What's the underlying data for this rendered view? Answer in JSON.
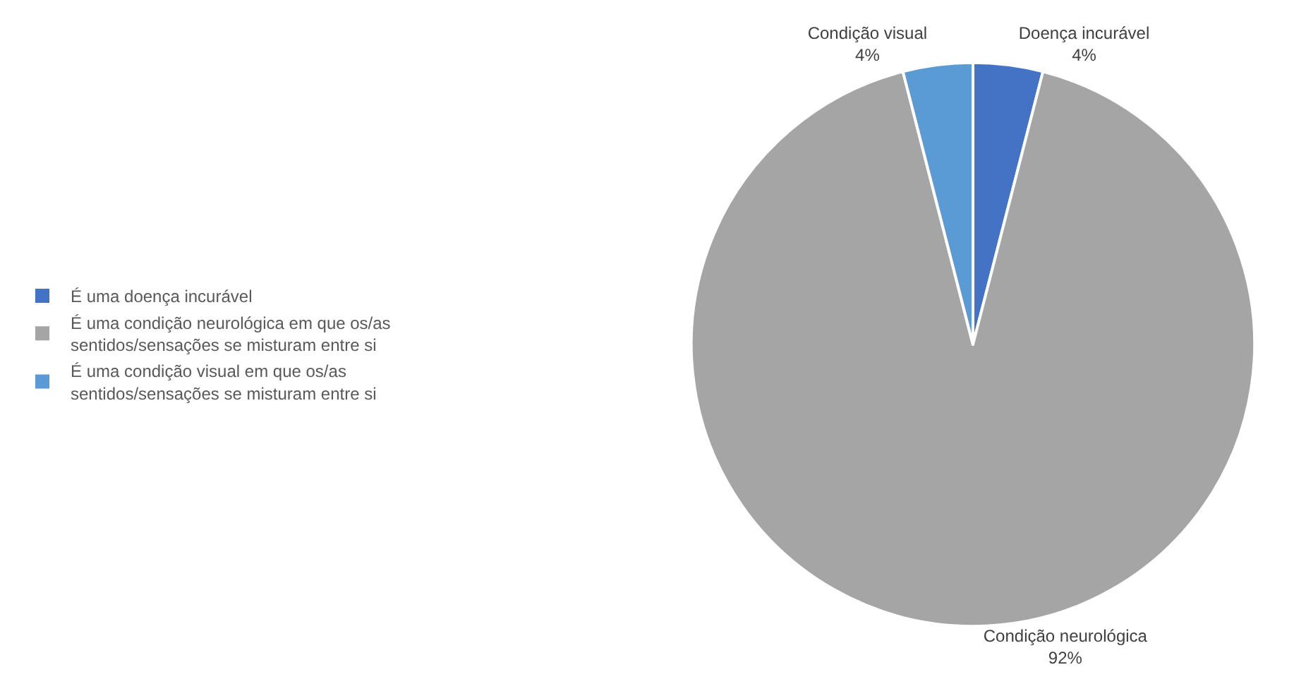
{
  "chart_data": {
    "type": "pie",
    "categories": [
      "É uma doença incurável",
      "É uma condição neurológica em que os/as sentidos/sensações se misturam entre si",
      "É uma condição visual em que os/as sentidos/sensações se misturam entre si"
    ],
    "values": [
      4,
      92,
      4
    ],
    "colors": [
      "#4472c4",
      "#a5a5a5",
      "#5b9bd5"
    ],
    "value_labels": [
      "Doença incurável\n4%",
      "Condição neurológica\n92%",
      "Condição visual\n4%"
    ],
    "legend": "left"
  }
}
